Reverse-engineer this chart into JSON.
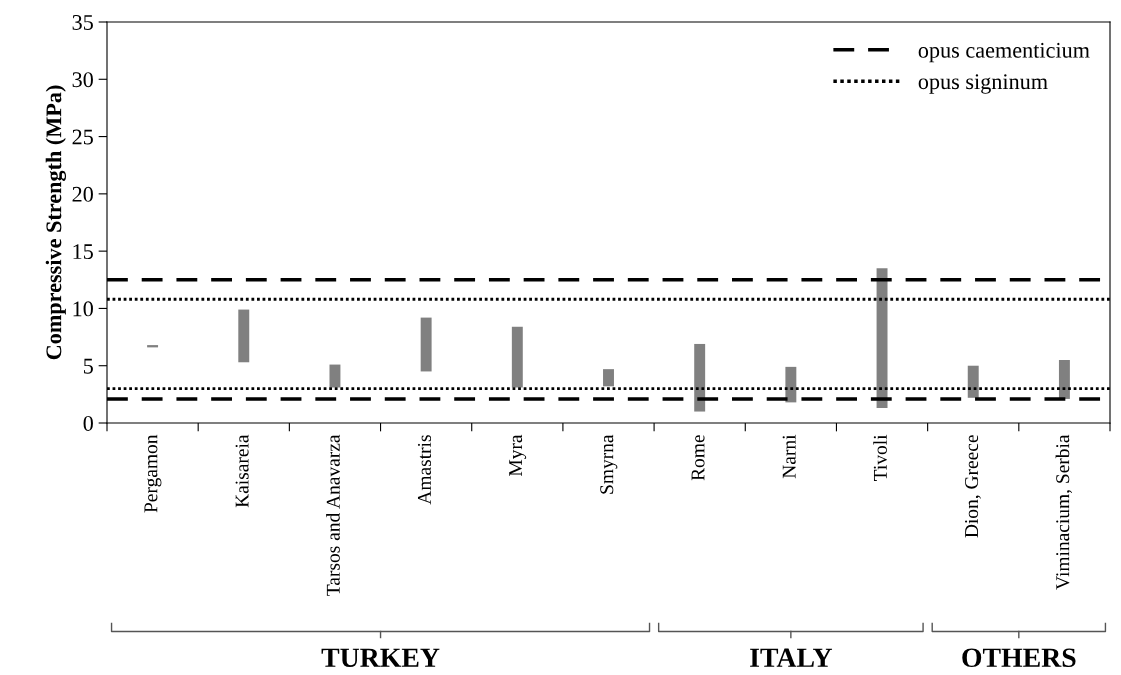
{
  "chart_data": {
    "type": "bar",
    "ylabel": "Compressive Strength (MPa)",
    "categories": [
      "Pergamon",
      "Kaisareia",
      "Tarsos and Anavarza",
      "Amastris",
      "Myra",
      "Smyrna",
      "Rome",
      "Narni",
      "Tivoli",
      "Dion, Greece",
      "Viminacium, Serbia"
    ],
    "base": [
      6.6,
      5.3,
      3.1,
      4.5,
      3.1,
      3.2,
      1.0,
      1.8,
      1.3,
      2.2,
      2.1
    ],
    "values": [
      0.2,
      4.6,
      2.0,
      4.7,
      5.3,
      1.5,
      5.9,
      3.1,
      12.2,
      2.8,
      3.4
    ],
    "color": "#808080",
    "ylim": [
      0,
      35
    ],
    "yticks": [
      0,
      5,
      10,
      15,
      20,
      25,
      30,
      35
    ],
    "ref_lines": [
      {
        "axis": "y",
        "value": 12.5,
        "label": "opus caementicium",
        "color": "#000000",
        "line_style": "dashed"
      },
      {
        "axis": "y",
        "value": 2.1,
        "color": "#000000",
        "line_style": "dashed"
      },
      {
        "axis": "y",
        "value": 10.8,
        "label": "opus signinum",
        "color": "#000000",
        "line_style": "dotted"
      },
      {
        "axis": "y",
        "value": 3.0,
        "color": "#000000",
        "line_style": "dotted"
      }
    ],
    "legend": "top right",
    "grid": false,
    "annotations": [
      "TURKEY",
      "ITALY",
      "OTHERS"
    ]
  }
}
